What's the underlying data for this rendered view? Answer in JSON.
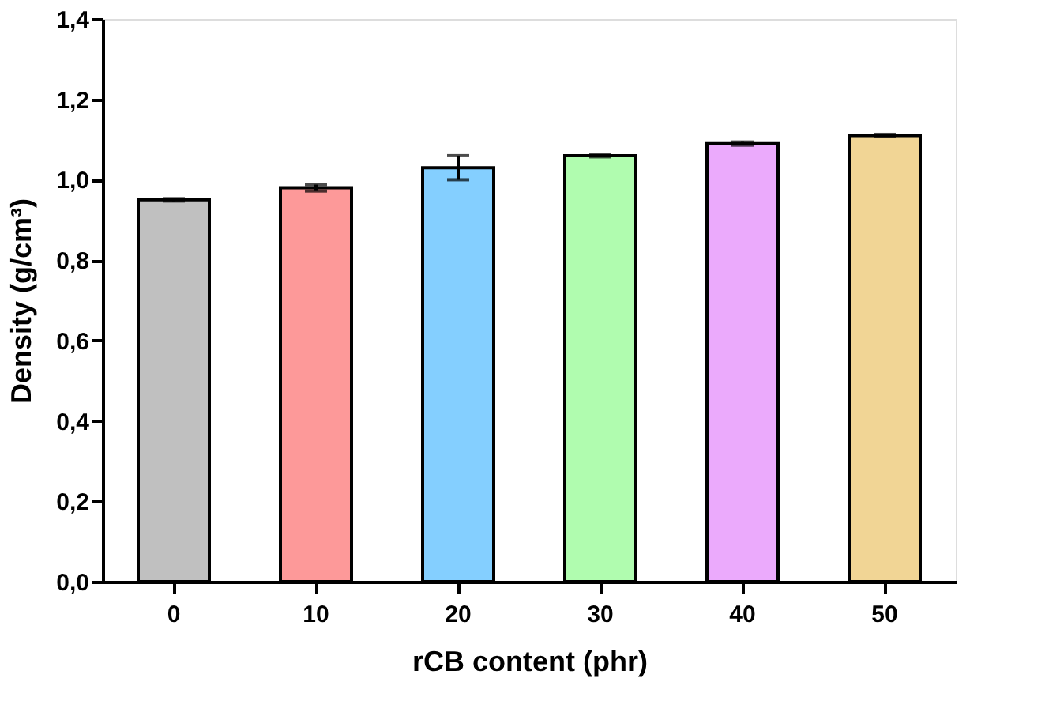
{
  "chart_data": {
    "type": "bar",
    "xlabel": "rCB content (phr)",
    "ylabel": "Density (g/cm³)",
    "categories": [
      "0",
      "10",
      "20",
      "30",
      "40",
      "50"
    ],
    "values": [
      0.95,
      0.98,
      1.03,
      1.06,
      1.09,
      1.11
    ],
    "errors": [
      0.003,
      0.008,
      0.03,
      0.003,
      0.004,
      0.003
    ],
    "colors": [
      "#c0c0c0",
      "#fd9999",
      "#84cfff",
      "#b0fcaf",
      "#ebaafc",
      "#f1d595"
    ],
    "ylim": [
      0,
      1.4
    ],
    "yticks": [
      {
        "value": 0,
        "label": "0,0"
      },
      {
        "value": 0.2,
        "label": "0,2"
      },
      {
        "value": 0.4,
        "label": "0,4"
      },
      {
        "value": 0.6,
        "label": "0,6"
      },
      {
        "value": 0.8,
        "label": "0,8"
      },
      {
        "value": 1.0,
        "label": "1,0"
      },
      {
        "value": 1.2,
        "label": "1,2"
      },
      {
        "value": 1.4,
        "label": "1,4"
      }
    ],
    "grid": false,
    "legend": false
  }
}
